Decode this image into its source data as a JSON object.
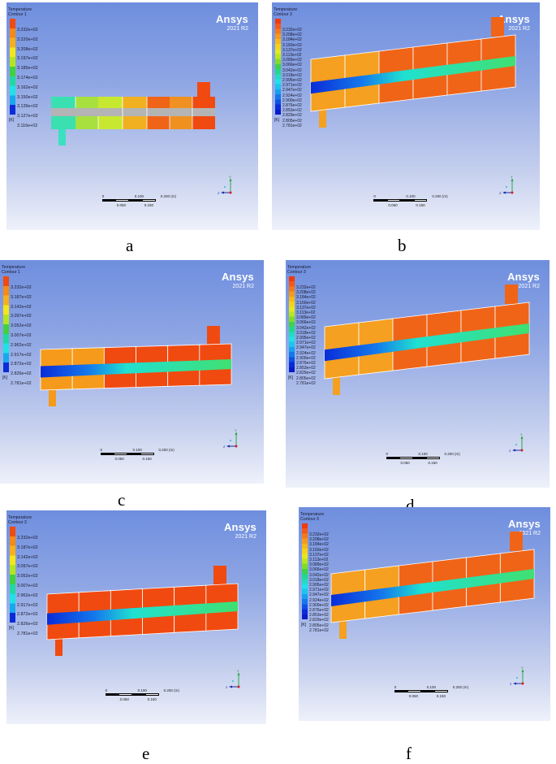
{
  "figure": {
    "panels": [
      {
        "id": "a",
        "label": "a",
        "legend": {
          "title_line1": "Temperature",
          "title_line2": "Contour 1",
          "levels": [
            "3.232e+02",
            "3.220e+02",
            "3.208e+02",
            "3.197e+02",
            "3.185e+02",
            "3.174e+02",
            "3.162e+02",
            "3.150e+02",
            "3.139e+02",
            "3.127e+02",
            "3.116e+02"
          ],
          "unit": "[K]"
        },
        "brand": "Ansys",
        "version": "2021 R2",
        "scale": {
          "top": [
            "0",
            "0.100",
            "0.200 (m)"
          ],
          "bottom": [
            "0.050",
            "0.150"
          ]
        },
        "triad": {
          "y": "Y",
          "z": "Z"
        }
      },
      {
        "id": "b",
        "label": "b",
        "legend": {
          "title_line1": "Temperature",
          "title_line2": "Contour 3",
          "levels": [
            "3.232e+02",
            "3.208e+02",
            "3.184e+02",
            "3.160e+02",
            "3.137e+02",
            "3.113e+02",
            "3.089e+02",
            "3.066e+02",
            "3.042e+02",
            "3.018e+02",
            "2.995e+02",
            "2.971e+02",
            "2.947e+02",
            "2.924e+02",
            "2.900e+02",
            "2.876e+02",
            "2.853e+02",
            "2.829e+02",
            "2.805e+02",
            "2.781e+02"
          ],
          "unit": "[K]"
        },
        "brand": "Ansys",
        "version": "2021 R2",
        "scale": {
          "top": [
            "0",
            "0.100",
            "0.200 (m)"
          ],
          "bottom": [
            "0.050",
            "0.150"
          ]
        },
        "triad": {
          "y": "Y",
          "z": "Z"
        }
      },
      {
        "id": "c",
        "label": "c",
        "legend": {
          "title_line1": "Temperature",
          "title_line2": "Contour 1",
          "levels": [
            "3.232e+02",
            "3.187e+02",
            "3.142e+02",
            "3.097e+02",
            "3.052e+02",
            "3.007e+02",
            "2.962e+02",
            "2.917e+02",
            "2.872e+02",
            "2.826e+02",
            "2.781e+02"
          ],
          "unit": "[K]"
        },
        "brand": "Ansys",
        "version": "2021 R2",
        "scale": {
          "top": [
            "0",
            "0.100",
            "0.200 (m)"
          ],
          "bottom": [
            "0.050",
            "0.150"
          ]
        },
        "triad": {
          "y": "Y",
          "z": "Z"
        }
      },
      {
        "id": "d",
        "label": "d",
        "legend": {
          "title_line1": "Temperature",
          "title_line2": "Contour 3",
          "levels": [
            "3.232e+02",
            "3.208e+02",
            "3.184e+02",
            "3.160e+02",
            "3.137e+02",
            "3.113e+02",
            "3.089e+02",
            "3.066e+02",
            "3.042e+02",
            "3.018e+02",
            "2.995e+02",
            "2.971e+02",
            "2.947e+02",
            "2.924e+02",
            "2.900e+02",
            "2.876e+02",
            "2.853e+02",
            "2.829e+02",
            "2.805e+02",
            "2.781e+02"
          ],
          "unit": "[K]"
        },
        "brand": "Ansys",
        "version": "2021 R2",
        "scale": {
          "top": [
            "0",
            "0.100",
            "0.200 (m)"
          ],
          "bottom": [
            "0.050",
            "0.150"
          ]
        },
        "triad": {
          "y": "Y",
          "z": "Z"
        }
      },
      {
        "id": "e",
        "label": "e",
        "legend": {
          "title_line1": "Temperature",
          "title_line2": "Contour 3",
          "levels": [
            "3.232e+02",
            "3.187e+02",
            "3.142e+02",
            "3.097e+02",
            "3.052e+02",
            "3.007e+02",
            "2.962e+02",
            "2.917e+02",
            "2.872e+02",
            "2.826e+02",
            "2.781e+02"
          ],
          "unit": "[K]"
        },
        "brand": "Ansys",
        "version": "2021 R2",
        "scale": {
          "top": [
            "0",
            "0.100",
            "0.200 (m)"
          ],
          "bottom": [
            "0.050",
            "0.150"
          ]
        },
        "triad": {
          "y": "Y",
          "z": "Z"
        }
      },
      {
        "id": "f",
        "label": "f",
        "legend": {
          "title_line1": "Temperature",
          "title_line2": "Contour 3",
          "levels": [
            "3.232e+02",
            "3.208e+02",
            "3.184e+02",
            "3.160e+02",
            "3.137e+02",
            "3.113e+02",
            "3.089e+02",
            "3.066e+02",
            "3.042e+02",
            "3.018e+02",
            "2.995e+02",
            "2.971e+02",
            "2.947e+02",
            "2.924e+02",
            "2.900e+02",
            "2.876e+02",
            "2.853e+02",
            "2.829e+02",
            "2.805e+02",
            "2.781e+02"
          ],
          "unit": "[K]"
        },
        "brand": "Ansys",
        "version": "2021 R2",
        "scale": {
          "top": [
            "0",
            "0.100",
            "0.200 (m)"
          ],
          "bottom": [
            "0.050",
            "0.150"
          ]
        },
        "triad": {
          "y": "Y",
          "z": "Z"
        }
      }
    ],
    "colors": {
      "hot": "#f04a10",
      "warm": "#f59a1a",
      "mid": "#f5d21a",
      "green": "#3fd24a",
      "cyan": "#20e0d0",
      "cold": "#0a2cd8",
      "inlet_gray": "#b4b4b4"
    }
  }
}
